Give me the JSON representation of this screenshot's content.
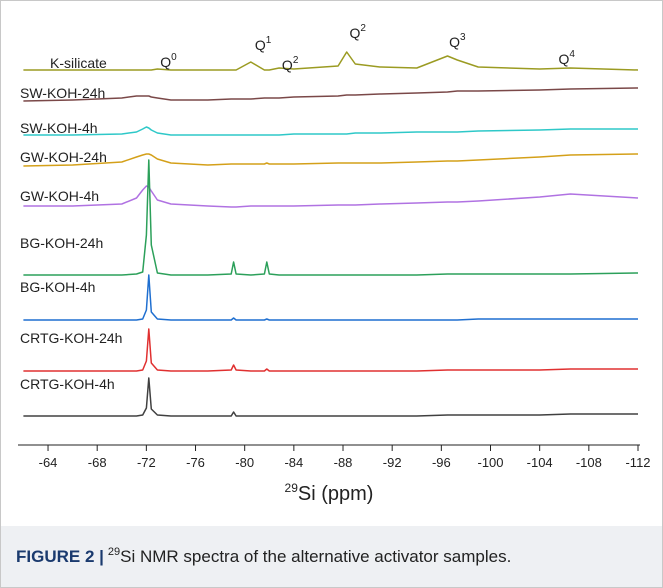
{
  "chart_data": {
    "type": "stacked-spectra",
    "xlabel": {
      "sup": "29",
      "text": "Si (ppm)"
    },
    "caption": {
      "label": "FIGURE 2 |",
      "sup": "29",
      "text": "Si NMR spectra of the alternative activator samples."
    },
    "xlim": [
      -61.5,
      -112
    ],
    "xticks": [
      -64,
      -68,
      -72,
      -76,
      -80,
      -84,
      -88,
      -92,
      -96,
      -100,
      -104,
      -108,
      -112
    ],
    "x": [
      -62,
      -66,
      -70,
      -71.2,
      -71.7,
      -72,
      -72.2,
      -72.4,
      -72.9,
      -74,
      -77,
      -78.9,
      -79.1,
      -79.3,
      -80.5,
      -81.6,
      -81.8,
      -82,
      -82.8,
      -84,
      -87.6,
      -88.3,
      -89,
      -91,
      -94,
      -96.5,
      -97.3,
      -99,
      -104,
      -106.5,
      -112
    ],
    "series": [
      {
        "name": "K-silicate",
        "color": "#9b9b22",
        "values": [
          0,
          0,
          0,
          0,
          0,
          0,
          0,
          0,
          1,
          0,
          0,
          0,
          0,
          0,
          8,
          0,
          0,
          0,
          2,
          1,
          4,
          18,
          6,
          3,
          2,
          14,
          10,
          3,
          1,
          2,
          0
        ]
      },
      {
        "name": "SW-KOH-24h",
        "color": "#7a4848",
        "values": [
          0,
          1,
          3,
          5,
          5,
          5,
          5,
          4,
          3,
          1,
          1,
          2,
          2,
          2,
          2,
          3,
          3,
          3,
          3,
          4,
          5,
          6,
          6,
          7,
          8,
          9,
          10,
          10,
          11,
          12,
          13
        ]
      },
      {
        "name": "SW-KOH-4h",
        "color": "#2ec8c8",
        "values": [
          0,
          0,
          1,
          3,
          6,
          8,
          7,
          5,
          2,
          0,
          0,
          0,
          0,
          0,
          0,
          0,
          0,
          0,
          0,
          1,
          1,
          1,
          2,
          2,
          3,
          3,
          3,
          4,
          5,
          6,
          6
        ]
      },
      {
        "name": "GW-KOH-24h",
        "color": "#d4a019",
        "values": [
          0,
          1,
          4,
          9,
          11,
          12,
          12,
          11,
          7,
          3,
          1,
          2,
          2,
          2,
          2,
          2,
          3,
          2,
          2,
          2,
          3,
          3,
          3,
          3,
          4,
          5,
          5,
          6,
          9,
          11,
          12
        ]
      },
      {
        "name": "GW-KOH-4h",
        "color": "#b072e2",
        "values": [
          0,
          0,
          2,
          8,
          16,
          20,
          19,
          15,
          6,
          2,
          0,
          -1,
          -1,
          -1,
          0,
          0,
          0,
          0,
          0,
          0,
          1,
          1,
          1,
          2,
          3,
          4,
          4,
          5,
          9,
          12,
          8
        ]
      },
      {
        "name": "BG-KOH-24h",
        "color": "#2ca05a",
        "values": [
          0,
          0,
          0,
          1,
          3,
          40,
          115,
          30,
          2,
          0,
          0,
          1,
          13,
          1,
          0,
          1,
          13,
          1,
          0,
          0,
          0,
          0,
          0,
          0,
          0,
          1,
          1,
          1,
          1,
          1,
          2
        ]
      },
      {
        "name": "BG-KOH-4h",
        "color": "#1f6fd0",
        "values": [
          0,
          0,
          0,
          0,
          1,
          10,
          45,
          8,
          1,
          0,
          0,
          0,
          2,
          0,
          0,
          0,
          1,
          0,
          0,
          0,
          0,
          0,
          0,
          0,
          0,
          0,
          0,
          1,
          1,
          1,
          1
        ]
      },
      {
        "name": "CRTG-KOH-24h",
        "color": "#e03030",
        "values": [
          0,
          0,
          0,
          0,
          1,
          10,
          42,
          8,
          1,
          0,
          0,
          1,
          6,
          1,
          0,
          0,
          2,
          0,
          0,
          0,
          0,
          0,
          0,
          0,
          0,
          1,
          1,
          1,
          1,
          2,
          2
        ]
      },
      {
        "name": "CRTG-KOH-4h",
        "color": "#404040",
        "values": [
          0,
          0,
          0,
          0,
          1,
          8,
          38,
          7,
          1,
          0,
          0,
          0,
          4,
          0,
          0,
          0,
          0,
          0,
          0,
          0,
          0,
          0,
          0,
          0,
          0,
          1,
          1,
          1,
          1,
          2,
          2
        ]
      }
    ],
    "annotations": [
      {
        "label": "Q",
        "sup": "0",
        "x": -73.8
      },
      {
        "label": "Q",
        "sup": "1",
        "x": -81.5
      },
      {
        "label": "Q",
        "sup": "2",
        "x": -83.7
      },
      {
        "label": "Q",
        "sup": "2",
        "x": -89.2
      },
      {
        "label": "Q",
        "sup": "3",
        "x": -97.3
      },
      {
        "label": "Q",
        "sup": "4",
        "x": -106.2
      }
    ]
  }
}
